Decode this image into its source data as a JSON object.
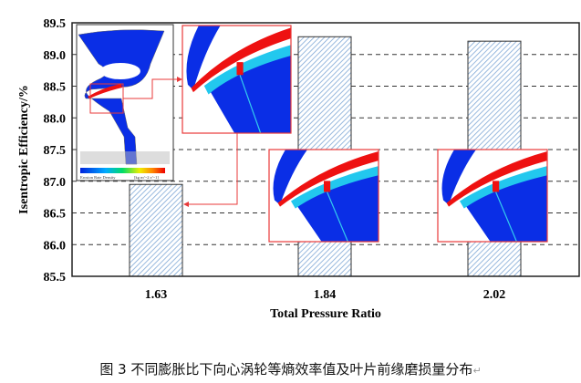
{
  "chart_data": {
    "type": "bar",
    "title": "",
    "xlabel": "Total Pressure Ratio",
    "ylabel": "Isentropic Efficiency/%",
    "categories": [
      "1.63",
      "1.84",
      "2.02"
    ],
    "values": [
      86.95,
      89.28,
      89.21
    ],
    "ylim": [
      85.5,
      89.5
    ],
    "yticks": [
      "85.5",
      "86.0",
      "86.5",
      "87.0",
      "87.5",
      "88.0",
      "88.5",
      "89.0",
      "89.5"
    ],
    "grid": "horizontal dashed",
    "bar_fill": "diagonal hatch",
    "inset_colorbar": {
      "label": "Erosion Rate Density",
      "unit": "[kg m^-2 s^-1]"
    }
  },
  "colors": {
    "hatch": "#7fa8d6",
    "highlight": "#e83a3a",
    "contour_blue": "#0a2ee6"
  },
  "caption": {
    "label": "图 3",
    "text": "不同膨胀比下向心涡轮等熵效率值及叶片前缘磨损量分布",
    "mark": "↵"
  }
}
